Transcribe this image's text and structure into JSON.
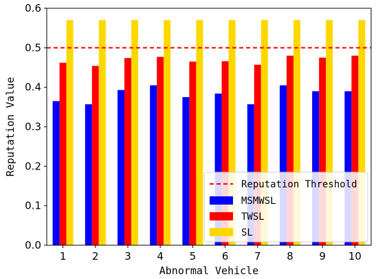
{
  "chart_data": {
    "type": "bar",
    "categories": [
      "1",
      "2",
      "3",
      "4",
      "5",
      "6",
      "7",
      "8",
      "9",
      "10"
    ],
    "series": [
      {
        "name": "MSMWSL",
        "color": "#0000ff",
        "values": [
          0.365,
          0.357,
          0.393,
          0.405,
          0.375,
          0.384,
          0.357,
          0.405,
          0.39,
          0.39
        ]
      },
      {
        "name": "TWSL",
        "color": "#ff0000",
        "values": [
          0.462,
          0.454,
          0.474,
          0.477,
          0.465,
          0.466,
          0.457,
          0.48,
          0.475,
          0.48
        ]
      },
      {
        "name": "SL",
        "color": "#ffd700",
        "values": [
          0.57,
          0.57,
          0.57,
          0.57,
          0.57,
          0.57,
          0.57,
          0.57,
          0.57,
          0.57
        ]
      }
    ],
    "threshold": {
      "name": "Reputation Threshold",
      "value": 0.5,
      "color": "#ff0000",
      "style": "dashed"
    },
    "xlabel": "Abnormal Vehicle",
    "ylabel": "Reputation Value",
    "ylim": [
      0,
      0.6
    ],
    "yticks": [
      "0.0",
      "0.1",
      "0.2",
      "0.3",
      "0.4",
      "0.5",
      "0.6"
    ],
    "grid": false,
    "legend_position": "bottom-right"
  }
}
